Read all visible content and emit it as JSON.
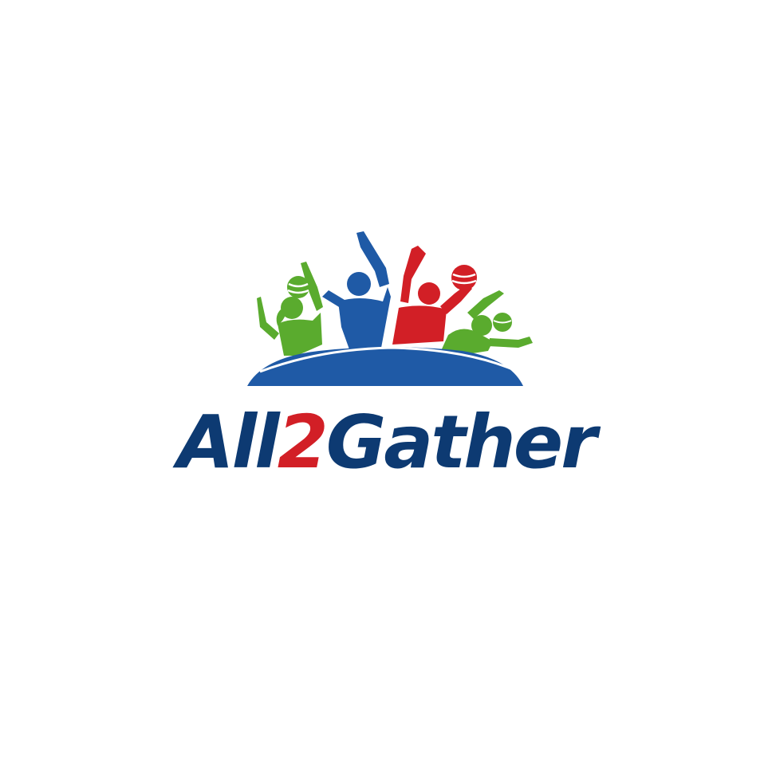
{
  "logo": {
    "wordmark": {
      "part_1": "All",
      "part_2": "2",
      "part_3": "Gather"
    },
    "colors": {
      "navy": "#0d3a72",
      "red": "#d21f26",
      "blue": "#1f5aa6",
      "green": "#5aab2e",
      "green_dark": "#3f8a22"
    },
    "emblem": {
      "figures": [
        "green-person-left",
        "blue-person",
        "red-person-with-ball",
        "green-person-right"
      ],
      "base": "blue-dome"
    }
  }
}
